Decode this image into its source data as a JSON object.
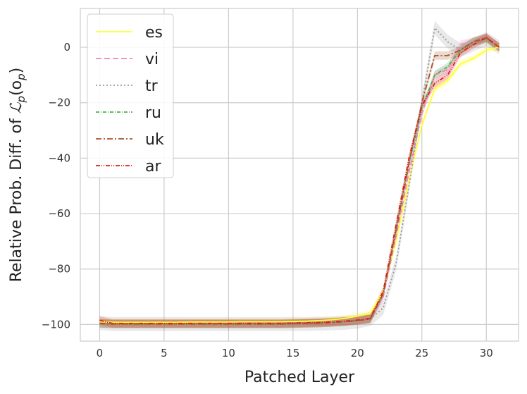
{
  "chart_data": {
    "type": "line",
    "xlabel": "Patched Layer",
    "ylabel": "Relative Prob. Diff. of ",
    "ylabel_math": "ℒ",
    "ylabel_sub": "p",
    "ylabel_arg_open": "(o",
    "ylabel_arg_sub": "p",
    "ylabel_arg_close": ")",
    "xlim": [
      -1.5,
      32.5
    ],
    "ylim": [
      -106,
      14
    ],
    "x_ticks": [
      0,
      5,
      10,
      15,
      20,
      25,
      30
    ],
    "x_tick_labels": [
      "0",
      "5",
      "10",
      "15",
      "20",
      "25",
      "30"
    ],
    "y_ticks": [
      0,
      -20,
      -40,
      -60,
      -80,
      -100
    ],
    "y_tick_labels": [
      "0",
      "−20",
      "−40",
      "−60",
      "−80",
      "−100"
    ],
    "grid": true,
    "legend_position": "top-left",
    "x": [
      0,
      1,
      2,
      3,
      4,
      5,
      6,
      7,
      8,
      9,
      10,
      11,
      12,
      13,
      14,
      15,
      16,
      17,
      18,
      19,
      20,
      21,
      22,
      23,
      24,
      25,
      26,
      27,
      28,
      29,
      30,
      31
    ],
    "series": [
      {
        "name": "es",
        "color": "#ffff33",
        "dash": "",
        "band": 1.2,
        "values": [
          -99,
          -99.2,
          -99.2,
          -99.2,
          -99.2,
          -99.2,
          -99.2,
          -99.1,
          -99.1,
          -99.1,
          -99.1,
          -99,
          -99,
          -99,
          -99,
          -98.9,
          -98.8,
          -98.6,
          -98.3,
          -97.8,
          -97,
          -96,
          -88,
          -70,
          -48,
          -28,
          -15,
          -12,
          -6,
          -4,
          -1,
          0
        ]
      },
      {
        "name": "vi",
        "color": "#f781bf",
        "dash": "8,4",
        "band": 1.5,
        "values": [
          -99.6,
          -99.8,
          -99.8,
          -99.8,
          -99.8,
          -99.8,
          -99.8,
          -99.8,
          -99.8,
          -99.8,
          -99.8,
          -99.8,
          -99.8,
          -99.8,
          -99.8,
          -99.7,
          -99.6,
          -99.5,
          -99.3,
          -99,
          -98.6,
          -98,
          -90,
          -68,
          -45,
          -24,
          -10,
          -8,
          1,
          2,
          3.5,
          0
        ]
      },
      {
        "name": "tr",
        "color": "#999999",
        "dash": "2,3",
        "band": 2.5,
        "values": [
          -99.5,
          -99.8,
          -99.8,
          -99.8,
          -99.8,
          -99.8,
          -99.8,
          -99.8,
          -99.8,
          -99.8,
          -99.8,
          -99.8,
          -99.8,
          -99.8,
          -99.8,
          -99.8,
          -99.8,
          -99.7,
          -99.6,
          -99.4,
          -99,
          -98,
          -94,
          -78,
          -50,
          -20,
          7,
          2,
          -1,
          1,
          3,
          0
        ]
      },
      {
        "name": "ru",
        "color": "#4daf4a",
        "dash": "5,2,1,2",
        "band": 1.5,
        "values": [
          -99.6,
          -99.8,
          -99.8,
          -99.8,
          -99.8,
          -99.8,
          -99.8,
          -99.8,
          -99.8,
          -99.8,
          -99.8,
          -99.8,
          -99.8,
          -99.8,
          -99.8,
          -99.7,
          -99.6,
          -99.5,
          -99.3,
          -99,
          -98.6,
          -98,
          -89,
          -66,
          -42,
          -22,
          -10,
          -7,
          -1,
          2,
          3,
          0
        ]
      },
      {
        "name": "uk",
        "color": "#a65628",
        "dash": "8,3,2,3",
        "band": 1.5,
        "values": [
          -99.6,
          -99.8,
          -99.8,
          -99.8,
          -99.8,
          -99.8,
          -99.8,
          -99.8,
          -99.8,
          -99.8,
          -99.8,
          -99.8,
          -99.8,
          -99.8,
          -99.8,
          -99.7,
          -99.6,
          -99.5,
          -99.3,
          -99,
          -98.6,
          -98,
          -89,
          -66,
          -42,
          -20,
          -3,
          -3,
          -1,
          2,
          3.5,
          0
        ]
      },
      {
        "name": "ar",
        "color": "#e41a1c",
        "dash": "6,2,1,2,1,2",
        "band": 1.5,
        "values": [
          -98.5,
          -99.6,
          -99.6,
          -99.6,
          -99.6,
          -99.6,
          -99.6,
          -99.6,
          -99.6,
          -99.6,
          -99.6,
          -99.6,
          -99.6,
          -99.6,
          -99.6,
          -99.5,
          -99.4,
          -99.3,
          -99.1,
          -98.8,
          -98.4,
          -97.8,
          -88,
          -64,
          -40,
          -21,
          -13,
          -10,
          -2,
          1,
          3.5,
          0
        ]
      }
    ]
  }
}
